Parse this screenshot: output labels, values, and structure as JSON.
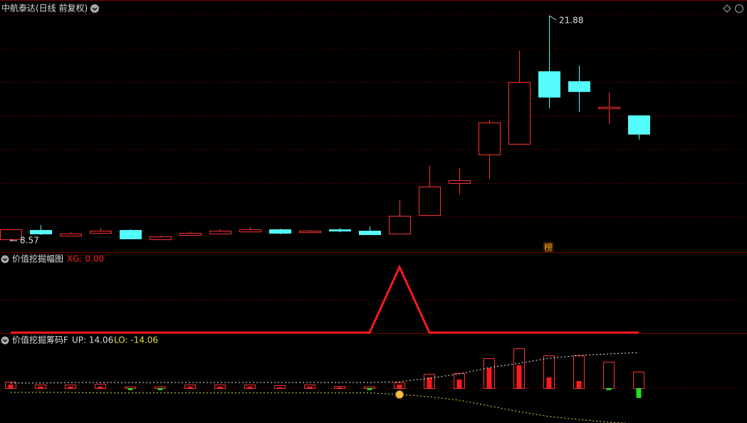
{
  "header": {
    "title": "中航泰达(日线 前复权)"
  },
  "chart_data": {
    "type": "candlestick",
    "open": [
      8.65,
      9.2,
      8.86,
      9.03,
      9.2,
      8.65,
      8.91,
      8.99,
      9.11,
      9.24,
      9.07,
      9.24,
      9.16,
      8.99,
      10.09,
      11.98,
      13.67,
      14.3,
      18.59,
      18.0,
      16.4,
      15.98
    ],
    "high": [
      9.24,
      9.5,
      9.07,
      9.32,
      9.24,
      8.86,
      9.11,
      9.24,
      9.37,
      9.28,
      9.2,
      9.32,
      9.41,
      10.97,
      12.99,
      12.87,
      15.73,
      19.82,
      21.88,
      18.93,
      17.33,
      15.98
    ],
    "low": [
      8.57,
      8.91,
      8.82,
      8.95,
      8.65,
      8.61,
      8.86,
      8.95,
      9.07,
      8.95,
      9.03,
      9.07,
      8.91,
      8.99,
      10.09,
      11.31,
      12.23,
      14.3,
      16.4,
      16.19,
      15.48,
      14.55
    ],
    "close": [
      9.24,
      8.99,
      8.99,
      9.16,
      8.7,
      8.82,
      9.03,
      9.16,
      9.24,
      9.03,
      9.16,
      9.16,
      8.95,
      10.04,
      11.77,
      12.15,
      15.56,
      17.96,
      17.08,
      17.41,
      16.49,
      14.89
    ],
    "high_label": 21.88,
    "low_label": 8.57,
    "badge": "榜",
    "up_color": "#ff3232",
    "down_color": "#54fcfc"
  },
  "panel2": {
    "title": "价值挖掘幅图",
    "legend": "XG: 0.00",
    "color": "#ff1a1a",
    "values": [
      0,
      0,
      0,
      0,
      0,
      0,
      0,
      0,
      0,
      0,
      0,
      0,
      0,
      1,
      0,
      0,
      0,
      0,
      0,
      0,
      0,
      0
    ]
  },
  "panel3": {
    "title": "价值挖掘筹码F",
    "legend_up": "UP: 14.06",
    "legend_lo": "LO: -14.06",
    "box": [
      2.5,
      1.4,
      1.4,
      1.7,
      0.6,
      0.6,
      1.4,
      1.4,
      1.4,
      1.1,
      1.4,
      0.8,
      0.6,
      2.25,
      5.6,
      5.9,
      11.8,
      15.7,
      12.9,
      12.9,
      10.4,
      6.5
    ],
    "bar": [
      1.4,
      0.6,
      0.6,
      0.6,
      -0.8,
      -0.8,
      0.6,
      0.6,
      0.6,
      0.3,
      0.6,
      0.3,
      -0.8,
      1.4,
      4.2,
      3.4,
      7.9,
      9.0,
      4.2,
      2.8,
      -0.8,
      -3.9
    ],
    "up": [
      2.0,
      2.0,
      2.2,
      2.2,
      2.2,
      2.2,
      2.2,
      2.2,
      2.2,
      2.2,
      2.2,
      2.2,
      2.2,
      2.5,
      3.9,
      5.6,
      8.1,
      9.8,
      11.8,
      12.9,
      13.5,
      14.06
    ],
    "lo": [
      -1.7,
      -1.7,
      -1.7,
      -1.9,
      -1.9,
      -1.9,
      -1.9,
      -1.9,
      -1.9,
      -1.9,
      -1.9,
      -1.9,
      -1.9,
      -2.5,
      -3.4,
      -4.8,
      -7.0,
      -9.3,
      -11.2,
      -12.4,
      -13.5,
      -14.06
    ]
  }
}
